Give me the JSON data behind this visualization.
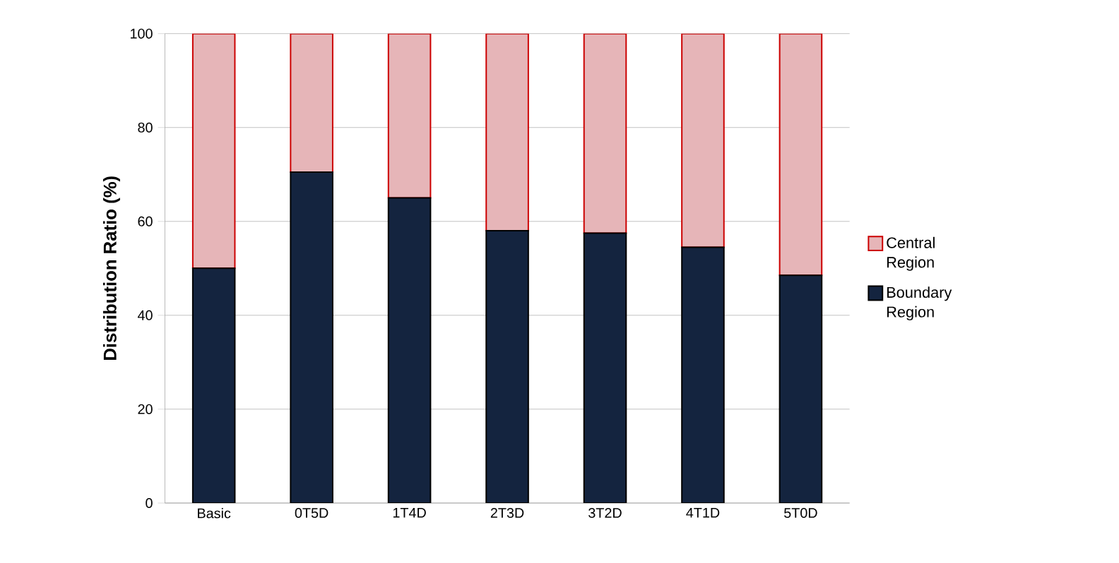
{
  "chart_data": {
    "type": "bar",
    "stacked": true,
    "ylabel": "Distribution Ratio (%)",
    "categories": [
      "Basic",
      "0T5D",
      "1T4D",
      "2T3D",
      "3T2D",
      "4T1D",
      "5T0D"
    ],
    "series": [
      {
        "name": "Boundary Region",
        "color": "#14243f",
        "values": [
          50,
          70.5,
          65,
          58,
          57.5,
          54.5,
          48.5
        ]
      },
      {
        "name": "Central Region",
        "color": "#e6b5b8",
        "values": [
          50,
          29.5,
          35,
          42,
          42.5,
          45.5,
          51.5
        ]
      }
    ],
    "ylim": [
      0,
      100
    ],
    "yticks": [
      0,
      20,
      40,
      60,
      80,
      100
    ],
    "grid": "y",
    "legend": "right"
  }
}
